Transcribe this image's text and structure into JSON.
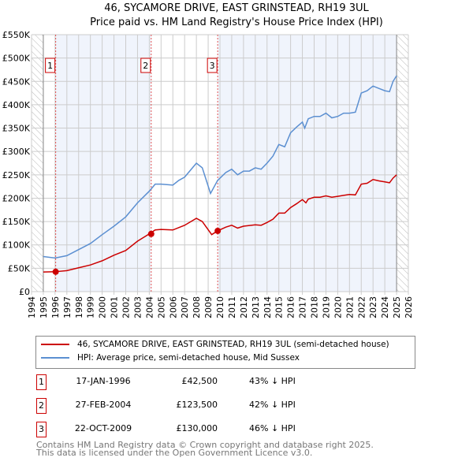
{
  "chart_data": {
    "type": "line",
    "title": "46, SYCAMORE DRIVE, EAST GRINSTEAD, RH19 3UL",
    "subtitle": "Price paid vs. HM Land Registry's House Price Index (HPI)",
    "xlim": [
      1994,
      2026
    ],
    "ylim": [
      0,
      550000
    ],
    "x_ticks": [
      "1994",
      "1995",
      "1996",
      "1997",
      "1998",
      "1999",
      "2000",
      "2001",
      "2002",
      "2003",
      "2004",
      "2005",
      "2006",
      "2007",
      "2008",
      "2009",
      "2010",
      "2011",
      "2012",
      "2013",
      "2014",
      "2015",
      "2016",
      "2017",
      "2018",
      "2019",
      "2020",
      "2021",
      "2022",
      "2023",
      "2024",
      "2025",
      "2026"
    ],
    "y_ticks": [
      "£0",
      "£50K",
      "£100K",
      "£150K",
      "£200K",
      "£250K",
      "£300K",
      "£350K",
      "£400K",
      "£450K",
      "£500K",
      "£550K"
    ],
    "grid": true,
    "series": [
      {
        "name": "46, SYCAMORE DRIVE, EAST GRINSTEAD, RH19 3UL (semi-detached house)",
        "color": "#cc0000",
        "x": [
          1995,
          1996,
          1997,
          1998,
          1999,
          2000,
          2001,
          2002,
          2003,
          2004,
          2004.5,
          2005,
          2006,
          2007,
          2008,
          2008.5,
          2009.3,
          2009.8,
          2010.5,
          2011,
          2011.5,
          2012,
          2013,
          2013.5,
          2014,
          2014.5,
          2015,
          2015.5,
          2016,
          2016.5,
          2017,
          2017.3,
          2017.5,
          2018,
          2018.5,
          2019,
          2019.5,
          2020,
          2020.5,
          2021,
          2021.5,
          2022,
          2022.5,
          2023,
          2023.5,
          2024,
          2024.4,
          2024.7,
          2025
        ],
        "y": [
          42000,
          42500,
          45000,
          51000,
          57000,
          66000,
          78000,
          88000,
          108000,
          123500,
          132000,
          133000,
          132000,
          142000,
          157000,
          150000,
          122000,
          130000,
          138000,
          142000,
          136000,
          140000,
          143000,
          142000,
          148000,
          155000,
          168000,
          168000,
          180000,
          188000,
          197000,
          190000,
          198000,
          202000,
          202000,
          205000,
          202000,
          204000,
          206000,
          208000,
          207000,
          230000,
          232000,
          240000,
          237000,
          235000,
          233000,
          243000,
          250000
        ]
      },
      {
        "name": "HPI: Average price, semi-detached house, Mid Sussex",
        "color": "#5b8fd1",
        "x": [
          1995,
          1996,
          1997,
          1998,
          1999,
          2000,
          2001,
          2002,
          2003,
          2004,
          2004.5,
          2005,
          2006,
          2006.5,
          2007,
          2007.5,
          2008,
          2008.5,
          2009.2,
          2009.8,
          2010.5,
          2011,
          2011.5,
          2012,
          2012.5,
          2013,
          2013.5,
          2014,
          2014.5,
          2015,
          2015.5,
          2016,
          2016.5,
          2017,
          2017.2,
          2017.5,
          2018,
          2018.5,
          2019,
          2019.5,
          2020,
          2020.5,
          2021,
          2021.5,
          2022,
          2022.5,
          2023,
          2023.5,
          2024,
          2024.4,
          2024.7,
          2025
        ],
        "y": [
          75000,
          72000,
          77000,
          90000,
          103000,
          122000,
          140000,
          160000,
          190000,
          215000,
          230000,
          230000,
          228000,
          238000,
          245000,
          260000,
          275000,
          265000,
          210000,
          238000,
          255000,
          262000,
          250000,
          258000,
          258000,
          265000,
          262000,
          275000,
          290000,
          315000,
          310000,
          340000,
          352000,
          363000,
          350000,
          370000,
          375000,
          375000,
          382000,
          372000,
          375000,
          382000,
          382000,
          384000,
          425000,
          430000,
          440000,
          435000,
          430000,
          428000,
          450000,
          462000
        ]
      }
    ],
    "sales": [
      {
        "label": "1",
        "x": 1996.05,
        "y": 42500,
        "date": "17-JAN-1996",
        "price": "£42,500",
        "hpi": "43% ↓ HPI"
      },
      {
        "label": "2",
        "x": 2004.16,
        "y": 123500,
        "date": "27-FEB-2004",
        "price": "£123,500",
        "hpi": "42% ↓ HPI"
      },
      {
        "label": "3",
        "x": 2009.81,
        "y": 130000,
        "date": "22-OCT-2009",
        "price": "£130,000",
        "hpi": "46% ↓ HPI"
      }
    ],
    "legend_position": "below"
  },
  "footer": {
    "line1": "Contains HM Land Registry data © Crown copyright and database right 2025.",
    "line2": "This data is licensed under the Open Government Licence v3.0."
  }
}
